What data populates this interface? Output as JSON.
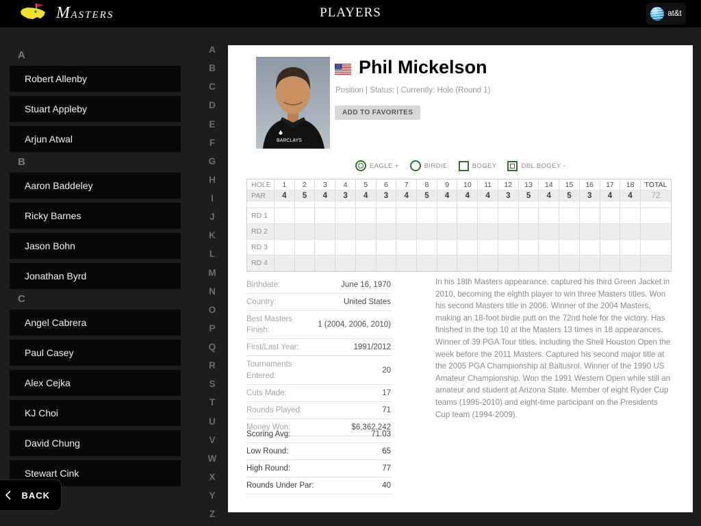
{
  "header": {
    "brand_first": "M",
    "brand_rest": "ASTERS",
    "title": "PLAYERS",
    "att_label": "at&t"
  },
  "alphabet": [
    "A",
    "B",
    "C",
    "D",
    "E",
    "F",
    "G",
    "H",
    "I",
    "J",
    "K",
    "L",
    "M",
    "N",
    "O",
    "P",
    "Q",
    "R",
    "S",
    "T",
    "U",
    "V",
    "W",
    "X",
    "Y",
    "Z"
  ],
  "sidebar": {
    "sections": [
      {
        "letter": "A",
        "players": [
          "Robert Allenby",
          "Stuart Appleby",
          "Arjun Atwal"
        ]
      },
      {
        "letter": "B",
        "players": [
          "Aaron Baddeley",
          "Ricky Barnes",
          "Jason Bohn",
          "Jonathan Byrd"
        ]
      },
      {
        "letter": "C",
        "players": [
          "Angel Cabrera",
          "Paul Casey",
          "Alex Cejka",
          "KJ Choi",
          "David Chung",
          "Stewart Cink"
        ]
      }
    ],
    "back_label": "BACK"
  },
  "player": {
    "name": "Phil Mickelson",
    "meta": "Position  | Status:  | Currently: Hole  (Round 1)",
    "favorites_label": "ADD TO FAVORITES",
    "photo_shirt_text": "BARCLAYS"
  },
  "legend": [
    {
      "shape": "double-circle",
      "label": "EAGLE +"
    },
    {
      "shape": "circle",
      "label": "BIRDIE"
    },
    {
      "shape": "square",
      "label": "BOGEY"
    },
    {
      "shape": "double-square",
      "label": "DBL BOGEY -"
    }
  ],
  "scorecard": {
    "hole_label": "HOLE",
    "par_label": "PAR",
    "total_label": "TOTAL",
    "holes": [
      "1",
      "2",
      "3",
      "4",
      "5",
      "6",
      "7",
      "8",
      "9",
      "10",
      "11",
      "12",
      "13",
      "14",
      "15",
      "16",
      "17",
      "18"
    ],
    "pars": [
      "4",
      "5",
      "4",
      "3",
      "4",
      "3",
      "4",
      "5",
      "4",
      "4",
      "4",
      "3",
      "5",
      "4",
      "5",
      "3",
      "4",
      "4"
    ],
    "total_par": "72",
    "rounds": [
      "RD 1",
      "RD 2",
      "RD 3",
      "RD 4"
    ]
  },
  "stats_primary": [
    {
      "label": "Birthdate:",
      "value": "June 16, 1970"
    },
    {
      "label": "Country:",
      "value": "United States"
    },
    {
      "label": "Best Masters Finish:",
      "value": "1 (2004, 2006, 2010)"
    },
    {
      "label": "First/Last Year:",
      "value": "1991/2012"
    },
    {
      "label": "Tournaments Entered:",
      "value": "20"
    },
    {
      "label": "Cuts Made:",
      "value": "17"
    },
    {
      "label": "Rounds Played:",
      "value": "71"
    },
    {
      "label": "Money Won:",
      "value": "$6,362,242"
    }
  ],
  "stats_secondary": [
    {
      "label": "Scoring Avg:",
      "value": "71.03"
    },
    {
      "label": "Low Round:",
      "value": "65"
    },
    {
      "label": "High Round:",
      "value": "77"
    },
    {
      "label": "Rounds Under Par:",
      "value": "40"
    }
  ],
  "bio": "In his 18th Masters appearance, captured his third Green Jacket in 2010, becoming the eighth player to win three Masters titles. Won his second Masters title in 2006. Winner of the 2004 Masters, making an 18-foot birdie putt on the 72nd hole for the victory. Has finished in the top 10 at the Masters 13 times in 18 appearances. Winner of 39 PGA Tour titles, including the Shell Houston Open the week before the 2011 Masters. Captured his second major title at the 2005 PGA Championship at Baltusrol. Winner of the 1990 US Amateur Championship. Won the 1991 Western Open while still an amateur and student at Arizona State. Member of eight Ryder Cup teams (1995-2010) and eight-time participant on the Presidents Cup team (1994-2009).",
  "colors": {
    "legend_green": "#2f6d31",
    "logo_yellow": "#f3df34",
    "flag_red": "#c52127",
    "att_blue": "#0d8fca",
    "panel_bg": "#ffffff",
    "page_bg": "#1d1d1d"
  }
}
